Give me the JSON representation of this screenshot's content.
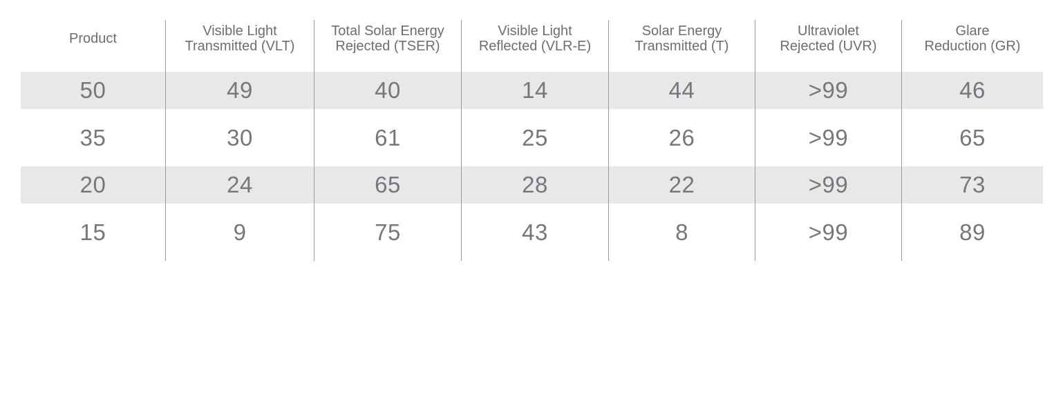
{
  "table": {
    "title": "window-film-performance-specs",
    "columns": [
      {
        "lines": [
          "Product"
        ]
      },
      {
        "lines": [
          "Visible Light",
          "Transmitted (VLT)"
        ]
      },
      {
        "lines": [
          "Total Solar Energy",
          "Rejected (TSER)"
        ]
      },
      {
        "lines": [
          "Visible Light",
          "Reflected (VLR-E)"
        ]
      },
      {
        "lines": [
          "Solar Energy",
          "Transmitted (T)"
        ]
      },
      {
        "lines": [
          "Ultraviolet",
          "Rejected (UVR)"
        ]
      },
      {
        "lines": [
          "Glare",
          "Reduction (GR)"
        ]
      }
    ],
    "rows": [
      {
        "cells": [
          "50",
          "49",
          "40",
          "14",
          "44",
          ">99",
          "46"
        ]
      },
      {
        "cells": [
          "35",
          "30",
          "61",
          "25",
          "26",
          ">99",
          "65"
        ]
      },
      {
        "cells": [
          "20",
          "24",
          "65",
          "28",
          "22",
          ">99",
          "73"
        ]
      },
      {
        "cells": [
          "15",
          "9",
          "75",
          "43",
          "8",
          ">99",
          "89"
        ]
      }
    ]
  },
  "colors": {
    "row_shading": "#e8e8ea",
    "divider": "#98999b",
    "header_text": "#6c6d70",
    "data_text": "#76777a",
    "background": "#ffffff"
  }
}
